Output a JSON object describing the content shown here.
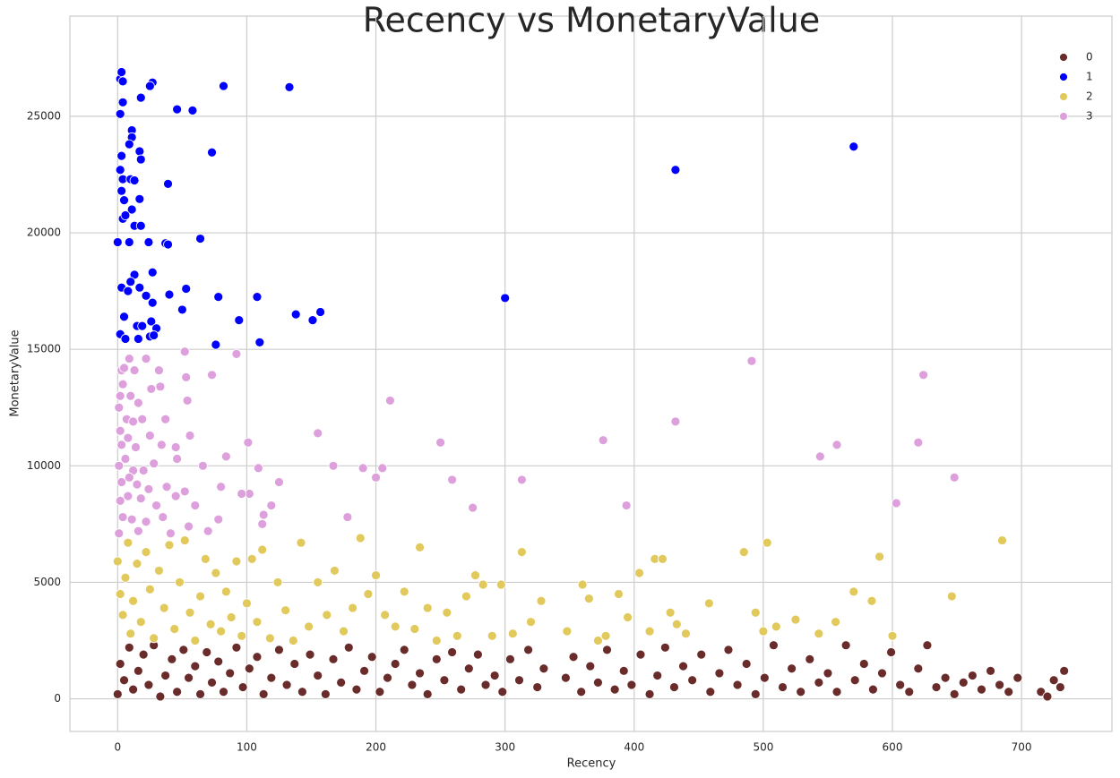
{
  "chart_data": {
    "type": "scatter",
    "title": "Recency vs MonetaryValue",
    "x_label": "Recency",
    "y_label": "MonetaryValue",
    "xlim": [
      -37,
      770
    ],
    "ylim": [
      -1400,
      29300
    ],
    "xticks": [
      0,
      100,
      200,
      300,
      400,
      500,
      600,
      700
    ],
    "yticks": [
      0,
      5000,
      10000,
      15000,
      20000,
      25000
    ],
    "grid": true,
    "legend_position": "upper right",
    "series": [
      {
        "name": "0",
        "color": "#6a2c2a",
        "x": [
          0,
          2,
          5,
          9,
          12,
          16,
          20,
          24,
          28,
          33,
          37,
          42,
          46,
          51,
          55,
          60,
          64,
          69,
          73,
          78,
          82,
          87,
          92,
          97,
          102,
          108,
          113,
          119,
          125,
          131,
          137,
          143,
          149,
          155,
          161,
          167,
          173,
          179,
          185,
          191,
          197,
          203,
          209,
          215,
          222,
          228,
          234,
          240,
          247,
          253,
          259,
          266,
          272,
          279,
          285,
          292,
          298,
          304,
          311,
          318,
          325,
          330,
          347,
          353,
          359,
          366,
          372,
          379,
          385,
          392,
          398,
          405,
          412,
          418,
          424,
          431,
          438,
          445,
          452,
          459,
          466,
          473,
          480,
          487,
          494,
          501,
          508,
          515,
          522,
          529,
          536,
          543,
          550,
          557,
          564,
          571,
          578,
          585,
          592,
          599,
          606,
          613,
          620,
          627,
          634,
          641,
          648,
          655,
          662,
          669,
          676,
          683,
          690,
          697,
          715,
          720,
          725,
          730,
          733
        ],
        "values": [
          200,
          1500,
          800,
          2200,
          400,
          1200,
          1900,
          600,
          2300,
          100,
          1000,
          1700,
          300,
          2100,
          900,
          1400,
          200,
          2000,
          700,
          1600,
          300,
          1100,
          2200,
          500,
          1300,
          1800,
          200,
          900,
          2100,
          600,
          1500,
          300,
          1900,
          1000,
          200,
          1700,
          700,
          2200,
          400,
          1200,
          1800,
          300,
          900,
          1500,
          2100,
          600,
          1100,
          200,
          1700,
          800,
          2000,
          400,
          1300,
          1900,
          600,
          1000,
          300,
          1700,
          800,
          2100,
          500,
          1300,
          900,
          1800,
          300,
          1400,
          700,
          2100,
          400,
          1200,
          600,
          1900,
          200,
          1000,
          2200,
          500,
          1400,
          800,
          1900,
          300,
          1100,
          2100,
          600,
          1500,
          200,
          900,
          2300,
          500,
          1300,
          300,
          1700,
          700,
          1100,
          300,
          2300,
          800,
          1500,
          400,
          1100,
          2000,
          600,
          300,
          1300,
          2300,
          500,
          900,
          200,
          700,
          1000,
          400,
          1200,
          600,
          300,
          900,
          300,
          100,
          800,
          500,
          1200
        ]
      },
      {
        "name": "1",
        "color": "#0000ff",
        "x": [
          2,
          3,
          4,
          27,
          25,
          82,
          133,
          18,
          4,
          46,
          58,
          2,
          11,
          11,
          9,
          17,
          18,
          73,
          3,
          2,
          4,
          10,
          13,
          39,
          3,
          5,
          17,
          11,
          4,
          6,
          13,
          18,
          0,
          9,
          24,
          37,
          39,
          64,
          27,
          13,
          3,
          8,
          10,
          17,
          22,
          27,
          40,
          53,
          78,
          108,
          5,
          15,
          19,
          26,
          30,
          50,
          94,
          138,
          151,
          157,
          2,
          6,
          16,
          25,
          28,
          76,
          110,
          300,
          432,
          570
        ],
        "values": [
          26600,
          26900,
          26500,
          26450,
          26300,
          26300,
          26250,
          25800,
          25600,
          25300,
          25250,
          25100,
          24400,
          24100,
          23800,
          23500,
          23150,
          23450,
          23300,
          22700,
          22300,
          22300,
          22250,
          22100,
          21800,
          21400,
          21450,
          21000,
          20600,
          20750,
          20300,
          20300,
          19600,
          19600,
          19600,
          19550,
          19500,
          19750,
          18300,
          18200,
          17650,
          17500,
          17900,
          17650,
          17300,
          17000,
          17350,
          17600,
          17250,
          17250,
          16400,
          16000,
          16000,
          16200,
          15900,
          16700,
          16250,
          16500,
          16250,
          16600,
          15650,
          15450,
          15450,
          15550,
          15600,
          15200,
          15300,
          17200,
          22700,
          23700
        ]
      },
      {
        "name": "2",
        "color": "#e2c95c",
        "x": [
          0,
          2,
          4,
          6,
          8,
          10,
          12,
          15,
          18,
          22,
          25,
          28,
          32,
          36,
          40,
          44,
          48,
          52,
          56,
          60,
          64,
          68,
          72,
          76,
          80,
          84,
          88,
          92,
          96,
          100,
          104,
          108,
          112,
          118,
          124,
          130,
          136,
          142,
          148,
          155,
          162,
          168,
          175,
          182,
          188,
          194,
          200,
          207,
          215,
          222,
          230,
          234,
          240,
          247,
          255,
          263,
          270,
          277,
          283,
          290,
          297,
          306,
          313,
          320,
          328,
          348,
          360,
          365,
          372,
          378,
          388,
          395,
          404,
          412,
          416,
          422,
          428,
          433,
          440,
          458,
          485,
          494,
          500,
          503,
          510,
          525,
          543,
          556,
          570,
          584,
          590,
          600,
          646,
          685
        ],
        "values": [
          5900,
          4500,
          3600,
          5200,
          6700,
          2800,
          4200,
          5800,
          3300,
          6300,
          4700,
          2600,
          5500,
          3900,
          6600,
          3000,
          5000,
          6800,
          3700,
          2500,
          4400,
          6000,
          3200,
          5400,
          2900,
          4600,
          3500,
          5900,
          2700,
          4100,
          6000,
          3300,
          6400,
          2600,
          5000,
          3800,
          2500,
          6700,
          3100,
          5000,
          3600,
          5500,
          2900,
          3900,
          6900,
          4500,
          5300,
          3600,
          3100,
          4600,
          3000,
          6500,
          3900,
          2500,
          3700,
          2700,
          4400,
          5300,
          4900,
          2700,
          4900,
          2800,
          6300,
          3300,
          4200,
          2900,
          4900,
          4300,
          2500,
          2700,
          4500,
          3500,
          5400,
          2900,
          6000,
          6000,
          3700,
          3200,
          2800,
          4100,
          6300,
          3700,
          2900,
          6700,
          3100,
          3400,
          2800,
          3300,
          4600,
          4200,
          6100,
          2700,
          4400,
          6800
        ]
      },
      {
        "name": "3",
        "color": "#dda0dd",
        "x": [
          1,
          2,
          3,
          5,
          9,
          13,
          22,
          32,
          4,
          10,
          16,
          26,
          33,
          2,
          7,
          12,
          19,
          37,
          56,
          3,
          8,
          14,
          25,
          34,
          45,
          1,
          6,
          12,
          20,
          28,
          46,
          66,
          84,
          3,
          9,
          15,
          24,
          38,
          52,
          80,
          2,
          8,
          18,
          30,
          45,
          60,
          4,
          11,
          22,
          35,
          55,
          70,
          78,
          1,
          16,
          41,
          52,
          73,
          53,
          92,
          54,
          101,
          109,
          102,
          96,
          113,
          112,
          119,
          125,
          155,
          167,
          178,
          190,
          200,
          205,
          211,
          250,
          259,
          275,
          313,
          376,
          394,
          432,
          491,
          544,
          557,
          603,
          620,
          624,
          648
        ],
        "values": [
          12500,
          13000,
          14100,
          14200,
          14600,
          14100,
          14600,
          14100,
          13500,
          13000,
          12700,
          13300,
          13400,
          11500,
          12000,
          11900,
          12000,
          12000,
          11300,
          10900,
          11200,
          10800,
          11300,
          10900,
          10800,
          10000,
          10300,
          9800,
          9800,
          10100,
          10300,
          10000,
          10400,
          9300,
          9500,
          9200,
          9000,
          9100,
          8900,
          9100,
          8500,
          8700,
          8600,
          8300,
          8700,
          8300,
          7800,
          7700,
          7600,
          7800,
          7400,
          7200,
          7700,
          7100,
          7200,
          7100,
          14900,
          13900,
          13800,
          14800,
          12800,
          11000,
          9900,
          8800,
          8800,
          7900,
          7500,
          8300,
          9300,
          11400,
          10000,
          7800,
          9900,
          9500,
          9900,
          12800,
          11000,
          9400,
          8200,
          9400,
          11100,
          8300,
          11900,
          14500,
          10400,
          10900,
          8400,
          11000,
          13900,
          9500
        ]
      }
    ]
  }
}
